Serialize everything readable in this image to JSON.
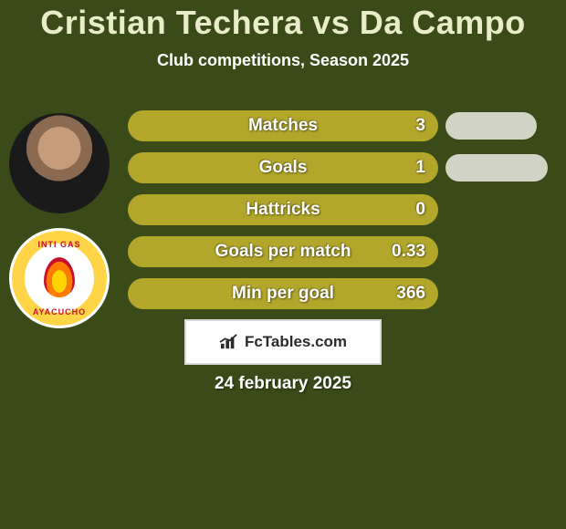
{
  "colors": {
    "page_bg": "#3a4a18",
    "title_color": "#e8ecc8",
    "subtitle_color": "#ffffff",
    "bar_fill": "#b2a72b",
    "bar_text": "#ffffff",
    "pill_fill": "#d2d5c5",
    "date_color": "#ffffff",
    "club_ring": "#ffd447"
  },
  "typography": {
    "title_fontsize": 36,
    "subtitle_fontsize": 18,
    "bar_label_fontsize": 19,
    "bar_value_fontsize": 19,
    "date_fontsize": 19,
    "brand_fontsize": 17
  },
  "title": "Cristian Techera vs Da Campo",
  "subtitle": "Club competitions, Season 2025",
  "avatars": {
    "player_alt": "Cristian Techera",
    "club_top_text": "INTI GAS",
    "club_bottom_text": "AYACUCHO"
  },
  "stats": {
    "rows": [
      {
        "label": "Matches",
        "left_value": "3",
        "right_pill_width": 100
      },
      {
        "label": "Goals",
        "left_value": "1",
        "right_pill_width": 112
      },
      {
        "label": "Hattricks",
        "left_value": "0",
        "right_pill_width": 0
      },
      {
        "label": "Goals per match",
        "left_value": "0.33",
        "right_pill_width": 0
      },
      {
        "label": "Min per goal",
        "left_value": "366",
        "right_pill_width": 0
      }
    ]
  },
  "brand": "FcTables.com",
  "date": "24 february 2025"
}
